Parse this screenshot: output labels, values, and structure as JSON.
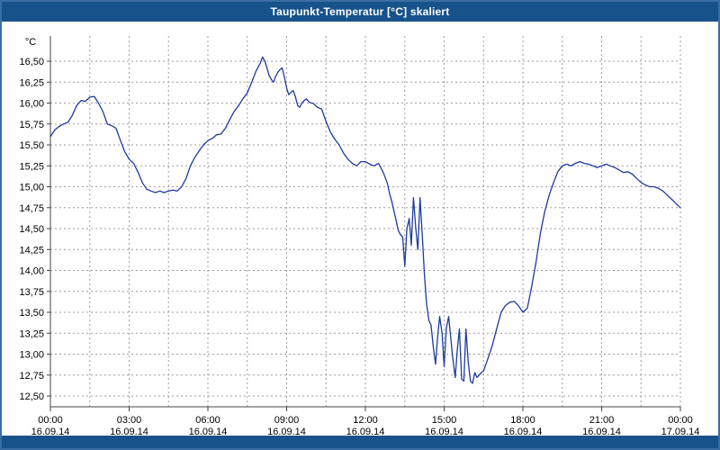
{
  "title_bar": {
    "title": "Taupunkt-Temperatur [°C] skaliert"
  },
  "chart_data": {
    "type": "line",
    "title": "Taupunkt-Temperatur [°C] skaliert",
    "xlabel": "",
    "ylabel": "°C",
    "ylim": [
      12.5,
      16.5
    ],
    "y_tick_step": 0.25,
    "y_tick_labels": [
      "16,50",
      "16,25",
      "16,00",
      "15,75",
      "15,50",
      "15,25",
      "15,00",
      "14,75",
      "14,50",
      "14,25",
      "14,00",
      "13,75",
      "13,50",
      "13,25",
      "13,00",
      "12,75",
      "12,50"
    ],
    "x_tick_hours": [
      0,
      3,
      6,
      9,
      12,
      15,
      18,
      21,
      24
    ],
    "x_tick_labels": [
      "00:00",
      "03:00",
      "06:00",
      "09:00",
      "12:00",
      "15:00",
      "18:00",
      "21:00",
      "00:00"
    ],
    "x_date_labels": [
      "16.09.14",
      "16.09.14",
      "16.09.14",
      "16.09.14",
      "16.09.14",
      "16.09.14",
      "16.09.14",
      "16.09.14",
      "17.09.14"
    ],
    "grid": "dashed",
    "legend": "none",
    "line_color": "#1F3A9E",
    "grid_color": "#9e9e9e",
    "axis_color": "#444444",
    "series": [
      {
        "name": "Taupunkt-Temperatur [°C]",
        "points": [
          [
            0.0,
            15.6
          ],
          [
            0.17,
            15.68
          ],
          [
            0.33,
            15.72
          ],
          [
            0.5,
            15.75
          ],
          [
            0.67,
            15.77
          ],
          [
            0.83,
            15.85
          ],
          [
            1.0,
            15.97
          ],
          [
            1.17,
            16.03
          ],
          [
            1.33,
            16.02
          ],
          [
            1.5,
            16.07
          ],
          [
            1.67,
            16.08
          ],
          [
            1.83,
            16.0
          ],
          [
            2.0,
            15.9
          ],
          [
            2.17,
            15.75
          ],
          [
            2.33,
            15.73
          ],
          [
            2.5,
            15.7
          ],
          [
            2.67,
            15.55
          ],
          [
            2.83,
            15.42
          ],
          [
            3.0,
            15.33
          ],
          [
            3.17,
            15.28
          ],
          [
            3.33,
            15.18
          ],
          [
            3.5,
            15.05
          ],
          [
            3.67,
            14.97
          ],
          [
            3.83,
            14.95
          ],
          [
            4.0,
            14.93
          ],
          [
            4.17,
            14.95
          ],
          [
            4.33,
            14.93
          ],
          [
            4.5,
            14.95
          ],
          [
            4.67,
            14.96
          ],
          [
            4.83,
            14.95
          ],
          [
            5.0,
            15.0
          ],
          [
            5.17,
            15.1
          ],
          [
            5.33,
            15.25
          ],
          [
            5.5,
            15.35
          ],
          [
            5.67,
            15.43
          ],
          [
            5.83,
            15.5
          ],
          [
            6.0,
            15.55
          ],
          [
            6.17,
            15.58
          ],
          [
            6.33,
            15.62
          ],
          [
            6.5,
            15.63
          ],
          [
            6.67,
            15.7
          ],
          [
            6.83,
            15.8
          ],
          [
            7.0,
            15.9
          ],
          [
            7.17,
            15.97
          ],
          [
            7.33,
            16.05
          ],
          [
            7.5,
            16.12
          ],
          [
            7.67,
            16.25
          ],
          [
            7.83,
            16.38
          ],
          [
            8.0,
            16.48
          ],
          [
            8.08,
            16.55
          ],
          [
            8.17,
            16.5
          ],
          [
            8.25,
            16.42
          ],
          [
            8.33,
            16.33
          ],
          [
            8.42,
            16.28
          ],
          [
            8.5,
            16.25
          ],
          [
            8.58,
            16.32
          ],
          [
            8.67,
            16.37
          ],
          [
            8.75,
            16.4
          ],
          [
            8.83,
            16.42
          ],
          [
            8.92,
            16.3
          ],
          [
            9.0,
            16.18
          ],
          [
            9.08,
            16.1
          ],
          [
            9.17,
            16.13
          ],
          [
            9.25,
            16.15
          ],
          [
            9.33,
            16.08
          ],
          [
            9.42,
            15.97
          ],
          [
            9.5,
            15.95
          ],
          [
            9.58,
            16.0
          ],
          [
            9.67,
            16.03
          ],
          [
            9.75,
            16.05
          ],
          [
            9.83,
            16.02
          ],
          [
            9.92,
            16.0
          ],
          [
            10.0,
            16.0
          ],
          [
            10.17,
            15.95
          ],
          [
            10.33,
            15.93
          ],
          [
            10.5,
            15.78
          ],
          [
            10.67,
            15.65
          ],
          [
            10.83,
            15.57
          ],
          [
            11.0,
            15.5
          ],
          [
            11.17,
            15.4
          ],
          [
            11.33,
            15.33
          ],
          [
            11.5,
            15.28
          ],
          [
            11.67,
            15.25
          ],
          [
            11.83,
            15.3
          ],
          [
            12.0,
            15.3
          ],
          [
            12.17,
            15.27
          ],
          [
            12.33,
            15.25
          ],
          [
            12.5,
            15.28
          ],
          [
            12.67,
            15.18
          ],
          [
            12.83,
            15.05
          ],
          [
            12.92,
            14.92
          ],
          [
            13.0,
            14.83
          ],
          [
            13.08,
            14.72
          ],
          [
            13.17,
            14.6
          ],
          [
            13.25,
            14.48
          ],
          [
            13.33,
            14.43
          ],
          [
            13.42,
            14.4
          ],
          [
            13.5,
            14.05
          ],
          [
            13.58,
            14.5
          ],
          [
            13.67,
            14.62
          ],
          [
            13.75,
            14.3
          ],
          [
            13.83,
            14.87
          ],
          [
            13.92,
            14.5
          ],
          [
            14.0,
            14.25
          ],
          [
            14.08,
            14.87
          ],
          [
            14.17,
            14.4
          ],
          [
            14.25,
            13.95
          ],
          [
            14.33,
            13.6
          ],
          [
            14.42,
            13.4
          ],
          [
            14.5,
            13.35
          ],
          [
            14.58,
            13.1
          ],
          [
            14.67,
            12.88
          ],
          [
            14.75,
            13.2
          ],
          [
            14.83,
            13.45
          ],
          [
            14.92,
            13.25
          ],
          [
            15.0,
            12.85
          ],
          [
            15.08,
            13.3
          ],
          [
            15.17,
            13.45
          ],
          [
            15.25,
            13.2
          ],
          [
            15.33,
            12.95
          ],
          [
            15.42,
            12.72
          ],
          [
            15.5,
            13.05
          ],
          [
            15.58,
            13.3
          ],
          [
            15.67,
            12.7
          ],
          [
            15.75,
            12.68
          ],
          [
            15.83,
            13.3
          ],
          [
            15.92,
            12.9
          ],
          [
            16.0,
            12.68
          ],
          [
            16.08,
            12.65
          ],
          [
            16.17,
            12.78
          ],
          [
            16.25,
            12.72
          ],
          [
            16.33,
            12.75
          ],
          [
            16.42,
            12.78
          ],
          [
            16.5,
            12.8
          ],
          [
            16.67,
            12.95
          ],
          [
            16.83,
            13.1
          ],
          [
            17.0,
            13.3
          ],
          [
            17.17,
            13.5
          ],
          [
            17.33,
            13.58
          ],
          [
            17.5,
            13.62
          ],
          [
            17.67,
            13.63
          ],
          [
            17.83,
            13.58
          ],
          [
            18.0,
            13.5
          ],
          [
            18.17,
            13.55
          ],
          [
            18.33,
            13.8
          ],
          [
            18.5,
            14.1
          ],
          [
            18.67,
            14.45
          ],
          [
            18.83,
            14.7
          ],
          [
            19.0,
            14.9
          ],
          [
            19.17,
            15.05
          ],
          [
            19.33,
            15.18
          ],
          [
            19.5,
            15.25
          ],
          [
            19.67,
            15.27
          ],
          [
            19.83,
            15.25
          ],
          [
            20.0,
            15.28
          ],
          [
            20.17,
            15.3
          ],
          [
            20.33,
            15.28
          ],
          [
            20.5,
            15.27
          ],
          [
            20.67,
            15.25
          ],
          [
            20.83,
            15.23
          ],
          [
            21.0,
            15.25
          ],
          [
            21.17,
            15.27
          ],
          [
            21.33,
            15.25
          ],
          [
            21.5,
            15.23
          ],
          [
            21.67,
            15.2
          ],
          [
            21.83,
            15.17
          ],
          [
            22.0,
            15.18
          ],
          [
            22.17,
            15.15
          ],
          [
            22.33,
            15.1
          ],
          [
            22.5,
            15.05
          ],
          [
            22.67,
            15.02
          ],
          [
            22.83,
            15.0
          ],
          [
            23.0,
            15.0
          ],
          [
            23.17,
            14.98
          ],
          [
            23.33,
            14.95
          ],
          [
            23.5,
            14.9
          ],
          [
            23.67,
            14.85
          ],
          [
            23.83,
            14.8
          ],
          [
            24.0,
            14.75
          ]
        ]
      }
    ]
  }
}
